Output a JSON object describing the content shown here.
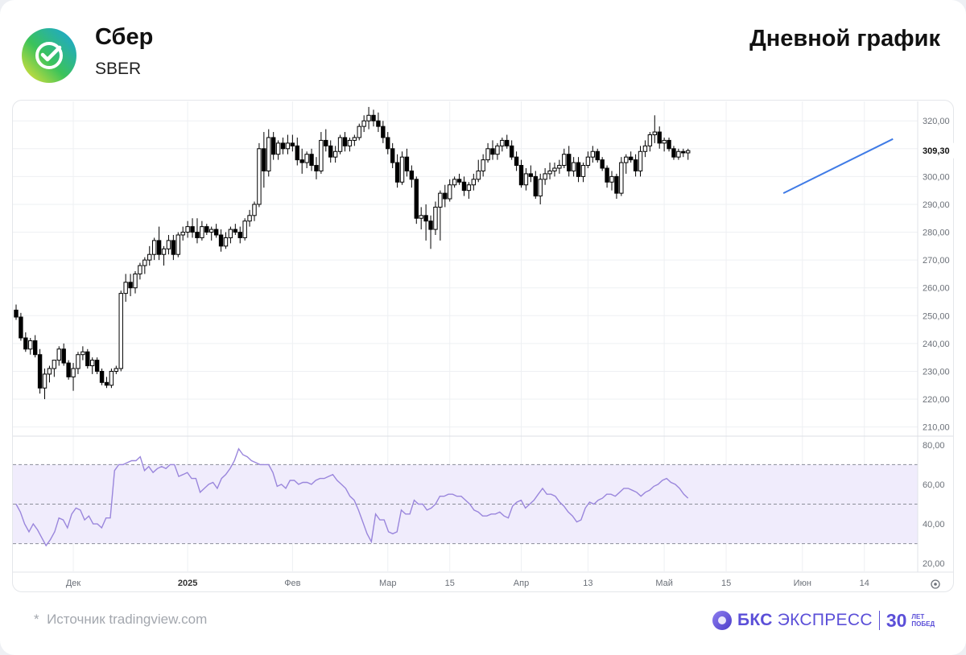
{
  "header": {
    "name": "Сбер",
    "ticker": "SBER",
    "title": "Дневной график"
  },
  "footer": {
    "star": "*",
    "source": "Источник tradingview.com",
    "brand_name": "БКС",
    "brand_sub": "ЭКСПРЕСС",
    "brand_years": "30",
    "brand_small_1": "ЛЕТ",
    "brand_small_2": "ПОБЕД"
  },
  "colors": {
    "up_fill": "#ffffff",
    "down_fill": "#000000",
    "candle_outline": "#000000",
    "trendline": "#3f7be6",
    "rsi_line": "#9a86dc",
    "rsi_band": "#f0ecfc",
    "grid": "#eef0f3",
    "axis_text": "#6b7078",
    "brand": "#5b4fd8"
  },
  "chart_data": [
    {
      "type": "candlestick",
      "title": "",
      "ylim": [
        207,
        327
      ],
      "y_ticks": [
        "320,00",
        "310,00",
        "300,00",
        "290,00",
        "280,00",
        "270,00",
        "260,00",
        "250,00",
        "240,00",
        "230,00",
        "220,00",
        "210,00"
      ],
      "last_price_label": "309,30",
      "x_labels": [
        {
          "i": 12,
          "label": "Дек"
        },
        {
          "i": 36,
          "label": "2025"
        },
        {
          "i": 58,
          "label": "Фев"
        },
        {
          "i": 78,
          "label": "Мар"
        },
        {
          "i": 91,
          "label": "15"
        },
        {
          "i": 106,
          "label": "Апр"
        },
        {
          "i": 120,
          "label": "13"
        },
        {
          "i": 136,
          "label": "Май"
        },
        {
          "i": 149,
          "label": "15"
        },
        {
          "i": 165,
          "label": "Июн"
        },
        {
          "i": 178,
          "label": "14"
        }
      ],
      "grid": true,
      "candles": [
        [
          252.0,
          254.0,
          248.5,
          249.5
        ],
        [
          249.5,
          251.0,
          241.0,
          242.0
        ],
        [
          242.0,
          244.0,
          237.0,
          238.0
        ],
        [
          238.0,
          242.0,
          236.0,
          241.0
        ],
        [
          241.0,
          243.0,
          235.0,
          236.0
        ],
        [
          236.0,
          238.0,
          222.0,
          224.0
        ],
        [
          224.0,
          231.0,
          220.0,
          229.0
        ],
        [
          229.0,
          232.0,
          226.0,
          231.0
        ],
        [
          231.0,
          233.0,
          228.0,
          234.0
        ],
        [
          234.0,
          239.0,
          232.0,
          238.0
        ],
        [
          238.0,
          240.0,
          232.0,
          233.0
        ],
        [
          233.0,
          234.0,
          227.0,
          228.0
        ],
        [
          228.0,
          233.0,
          223.0,
          231.0
        ],
        [
          231.0,
          237.0,
          229.0,
          236.0
        ],
        [
          236.0,
          239.0,
          234.0,
          237.0
        ],
        [
          237.0,
          238.0,
          231.0,
          232.0
        ],
        [
          232.0,
          235.0,
          229.0,
          234.0
        ],
        [
          234.0,
          235.0,
          229.0,
          230.0
        ],
        [
          230.0,
          231.0,
          225.0,
          226.0
        ],
        [
          226.0,
          228.0,
          224.0,
          225.0
        ],
        [
          225.0,
          231.0,
          224.0,
          230.0
        ],
        [
          230.0,
          232.0,
          229.0,
          231.0
        ],
        [
          231.0,
          259.0,
          230.0,
          258.0
        ],
        [
          258.0,
          265.0,
          255.0,
          262.0
        ],
        [
          262.0,
          265.0,
          257.0,
          260.0
        ],
        [
          260.0,
          266.0,
          258.0,
          265.0
        ],
        [
          265.0,
          269.0,
          263.0,
          268.0
        ],
        [
          268.0,
          271.0,
          265.0,
          270.0
        ],
        [
          270.0,
          275.0,
          268.0,
          272.0
        ],
        [
          272.0,
          278.0,
          270.0,
          277.0
        ],
        [
          277.0,
          282.0,
          270.0,
          272.0
        ],
        [
          272.0,
          275.0,
          268.0,
          274.0
        ],
        [
          274.0,
          279.0,
          272.0,
          277.0
        ],
        [
          277.0,
          279.0,
          270.0,
          272.0
        ],
        [
          272.0,
          280.0,
          271.0,
          279.0
        ],
        [
          279.0,
          282.0,
          277.0,
          280.0
        ],
        [
          280.0,
          284.0,
          278.0,
          282.0
        ],
        [
          282.0,
          285.0,
          278.0,
          280.0
        ],
        [
          280.0,
          285.0,
          276.0,
          278.0
        ],
        [
          278.0,
          284.0,
          277.0,
          282.0
        ],
        [
          282.0,
          283.0,
          279.0,
          280.0
        ],
        [
          280.0,
          282.0,
          277.0,
          281.0
        ],
        [
          281.0,
          283.0,
          278.0,
          279.0
        ],
        [
          279.0,
          281.0,
          273.0,
          275.0
        ],
        [
          275.0,
          280.0,
          274.0,
          278.0
        ],
        [
          278.0,
          282.0,
          276.0,
          281.0
        ],
        [
          281.0,
          283.0,
          279.0,
          280.0
        ],
        [
          280.0,
          282.0,
          276.0,
          278.0
        ],
        [
          278.0,
          285.0,
          277.0,
          284.0
        ],
        [
          284.0,
          288.0,
          282.0,
          286.0
        ],
        [
          286.0,
          291.0,
          284.0,
          290.0
        ],
        [
          290.0,
          312.0,
          289.0,
          310.0
        ],
        [
          310.0,
          316.0,
          296.0,
          302.0
        ],
        [
          302.0,
          317.0,
          300.0,
          314.0
        ],
        [
          314.0,
          316.0,
          306.0,
          308.0
        ],
        [
          308.0,
          313.0,
          306.0,
          312.0
        ],
        [
          312.0,
          314.0,
          308.0,
          310.0
        ],
        [
          310.0,
          315.0,
          308.0,
          312.0
        ],
        [
          312.0,
          315.0,
          309.0,
          311.0
        ],
        [
          311.0,
          314.0,
          304.0,
          306.0
        ],
        [
          306.0,
          310.0,
          301.0,
          305.0
        ],
        [
          305.0,
          309.0,
          303.0,
          308.0
        ],
        [
          308.0,
          310.0,
          302.0,
          304.0
        ],
        [
          304.0,
          307.0,
          299.0,
          302.0
        ],
        [
          302.0,
          316.0,
          301.0,
          313.0
        ],
        [
          313.0,
          317.0,
          309.0,
          311.0
        ],
        [
          311.0,
          313.0,
          305.0,
          307.0
        ],
        [
          307.0,
          311.0,
          305.0,
          309.0
        ],
        [
          309.0,
          315.0,
          308.0,
          314.0
        ],
        [
          314.0,
          316.0,
          309.0,
          311.0
        ],
        [
          311.0,
          314.0,
          309.0,
          313.0
        ],
        [
          313.0,
          315.0,
          311.0,
          314.0
        ],
        [
          314.0,
          319.0,
          313.0,
          318.0
        ],
        [
          318.0,
          322.0,
          316.0,
          320.0
        ],
        [
          320.0,
          325.0,
          317.0,
          322.0
        ],
        [
          322.0,
          324.0,
          318.0,
          320.0
        ],
        [
          320.0,
          323.0,
          316.0,
          318.0
        ],
        [
          318.0,
          320.0,
          312.0,
          314.0
        ],
        [
          314.0,
          316.0,
          308.0,
          310.0
        ],
        [
          310.0,
          312.0,
          303.0,
          305.0
        ],
        [
          305.0,
          308.0,
          296.0,
          298.0
        ],
        [
          298.0,
          309.0,
          297.0,
          307.0
        ],
        [
          307.0,
          310.0,
          300.0,
          302.0
        ],
        [
          302.0,
          304.0,
          296.0,
          299.0
        ],
        [
          299.0,
          300.0,
          283.0,
          285.0
        ],
        [
          285.0,
          289.0,
          281.0,
          286.0
        ],
        [
          286.0,
          290.0,
          277.0,
          284.0
        ],
        [
          284.0,
          286.0,
          274.0,
          281.0
        ],
        [
          281.0,
          291.0,
          279.0,
          289.0
        ],
        [
          289.0,
          295.0,
          277.0,
          294.0
        ],
        [
          294.0,
          297.0,
          289.0,
          292.0
        ],
        [
          292.0,
          299.0,
          291.0,
          297.0
        ],
        [
          297.0,
          300.0,
          296.0,
          299.0
        ],
        [
          299.0,
          301.0,
          297.0,
          298.0
        ],
        [
          298.0,
          300.0,
          293.0,
          295.0
        ],
        [
          295.0,
          298.0,
          292.0,
          297.0
        ],
        [
          297.0,
          301.0,
          295.0,
          299.0
        ],
        [
          299.0,
          306.0,
          298.0,
          302.0
        ],
        [
          302.0,
          308.0,
          300.0,
          306.0
        ],
        [
          306.0,
          312.0,
          305.0,
          310.0
        ],
        [
          310.0,
          313.0,
          306.0,
          308.0
        ],
        [
          308.0,
          312.0,
          306.0,
          311.0
        ],
        [
          311.0,
          314.0,
          309.0,
          313.0
        ],
        [
          313.0,
          315.0,
          310.0,
          311.0
        ],
        [
          311.0,
          313.0,
          306.0,
          307.0
        ],
        [
          307.0,
          309.0,
          302.0,
          304.0
        ],
        [
          304.0,
          306.0,
          296.0,
          297.0
        ],
        [
          297.0,
          303.0,
          295.0,
          301.0
        ],
        [
          301.0,
          304.0,
          298.0,
          300.0
        ],
        [
          300.0,
          302.0,
          292.0,
          293.0
        ],
        [
          293.0,
          301.0,
          290.0,
          299.0
        ],
        [
          299.0,
          303.0,
          297.0,
          301.0
        ],
        [
          301.0,
          305.0,
          299.0,
          302.0
        ],
        [
          302.0,
          305.0,
          300.0,
          303.0
        ],
        [
          303.0,
          306.0,
          301.0,
          304.0
        ],
        [
          304.0,
          310.0,
          303.0,
          308.0
        ],
        [
          308.0,
          311.0,
          300.0,
          302.0
        ],
        [
          302.0,
          307.0,
          300.0,
          305.0
        ],
        [
          305.0,
          307.0,
          298.0,
          300.0
        ],
        [
          300.0,
          305.0,
          298.0,
          304.0
        ],
        [
          304.0,
          309.0,
          303.0,
          307.0
        ],
        [
          307.0,
          311.0,
          305.0,
          309.0
        ],
        [
          309.0,
          310.0,
          305.0,
          306.0
        ],
        [
          306.0,
          307.0,
          302.0,
          303.0
        ],
        [
          303.0,
          304.0,
          296.0,
          298.0
        ],
        [
          298.0,
          302.0,
          295.0,
          300.0
        ],
        [
          300.0,
          301.0,
          292.0,
          294.0
        ],
        [
          294.0,
          307.0,
          293.0,
          305.0
        ],
        [
          305.0,
          308.0,
          301.0,
          307.0
        ],
        [
          307.0,
          309.0,
          305.0,
          306.0
        ],
        [
          306.0,
          308.0,
          300.0,
          302.0
        ],
        [
          302.0,
          311.0,
          300.0,
          309.0
        ],
        [
          309.0,
          313.0,
          307.0,
          311.0
        ],
        [
          311.0,
          316.0,
          309.0,
          315.0
        ],
        [
          315.0,
          322.0,
          312.0,
          316.0
        ],
        [
          316.0,
          318.0,
          310.0,
          312.0
        ],
        [
          312.0,
          314.0,
          309.0,
          313.0
        ],
        [
          313.0,
          314.0,
          309.0,
          310.0
        ],
        [
          310.0,
          311.0,
          306.0,
          307.0
        ],
        [
          307.0,
          310.0,
          306.0,
          309.0
        ],
        [
          309.0,
          310.0,
          307.0,
          308.5
        ],
        [
          308.5,
          310.0,
          306.0,
          309.3
        ]
      ],
      "trendline": {
        "from": [
          161,
          294.0
        ],
        "to": [
          184,
          313.5
        ]
      }
    },
    {
      "type": "line",
      "title": "",
      "ylim": [
        16,
        84
      ],
      "y_ticks": [
        "80,00",
        "60,00",
        "40,00",
        "20,00"
      ],
      "band": [
        30,
        70
      ],
      "midline": 50,
      "series": [
        {
          "values": [
            50,
            46,
            40,
            36,
            40,
            37,
            33,
            29,
            32,
            36,
            43,
            42,
            38,
            45,
            48,
            47,
            42,
            44,
            40,
            40,
            38,
            43,
            43,
            67,
            70,
            70,
            71,
            72,
            72,
            74,
            67,
            69,
            66,
            68,
            69,
            68,
            70,
            70,
            64,
            65,
            66,
            63,
            63,
            56,
            58,
            60,
            61,
            58,
            63,
            65,
            68,
            72,
            78,
            75,
            74,
            72,
            71,
            70,
            70,
            70,
            66,
            59,
            60,
            58,
            62,
            62,
            60,
            61,
            61,
            60,
            62,
            63,
            63,
            64,
            65,
            62,
            60,
            58,
            54,
            52,
            47,
            41,
            35,
            31,
            45,
            42,
            42,
            36,
            35,
            36,
            47,
            45,
            45,
            52,
            50,
            50,
            47,
            48,
            50,
            54,
            54,
            55,
            55,
            54,
            54,
            52,
            50,
            47,
            46,
            44,
            44,
            45,
            45,
            46,
            44,
            43,
            49,
            51,
            52,
            48,
            50,
            52,
            55,
            58,
            55,
            55,
            54,
            51,
            49,
            46,
            44,
            41,
            42,
            48,
            51,
            50,
            52,
            53,
            55,
            55,
            54,
            56,
            58,
            58,
            57,
            56,
            54,
            56,
            57,
            59,
            60,
            62,
            63,
            61,
            60,
            58,
            55,
            53
          ]
        }
      ],
      "rsi_x_offset": 0
    }
  ]
}
